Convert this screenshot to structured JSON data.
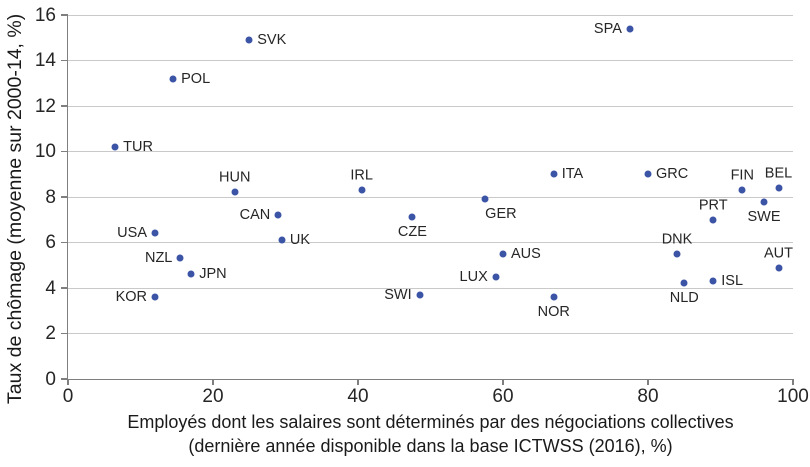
{
  "figure": {
    "background": "#ffffff",
    "dot_color": "#3b54a5",
    "grid_color": "#c9c9c9",
    "axis_color": "#7f7f7f",
    "text_color": "#262626"
  },
  "chart_data": {
    "type": "scatter",
    "title": "",
    "xlabel_line1": "Employés dont les salaires sont déterminés par des négociations collectives",
    "xlabel_line2": "(dernière année disponible dans la base ICTWSS (2016), %)",
    "ylabel": "Taux de chômage (moyenne sur 2000-14, %)",
    "xlim": [
      0,
      100
    ],
    "ylim": [
      0,
      16
    ],
    "x_ticks": [
      0,
      20,
      40,
      60,
      80,
      100
    ],
    "y_ticks": [
      0,
      2,
      4,
      6,
      8,
      10,
      12,
      14,
      16
    ],
    "grid": "horizontal",
    "legend": "none",
    "points": [
      {
        "label": "TUR",
        "x": 6.5,
        "y": 10.2,
        "label_pos": "right"
      },
      {
        "label": "KOR",
        "x": 12,
        "y": 3.6,
        "label_pos": "left"
      },
      {
        "label": "USA",
        "x": 12,
        "y": 6.4,
        "label_pos": "left"
      },
      {
        "label": "POL",
        "x": 14.5,
        "y": 13.2,
        "label_pos": "right"
      },
      {
        "label": "NZL",
        "x": 15.5,
        "y": 5.3,
        "label_pos": "left"
      },
      {
        "label": "JPN",
        "x": 17,
        "y": 4.6,
        "label_pos": "right"
      },
      {
        "label": "HUN",
        "x": 23,
        "y": 8.2,
        "label_pos": "above"
      },
      {
        "label": "SVK",
        "x": 25,
        "y": 14.9,
        "label_pos": "right"
      },
      {
        "label": "CAN",
        "x": 29,
        "y": 7.2,
        "label_pos": "left"
      },
      {
        "label": "UK",
        "x": 29.5,
        "y": 6.1,
        "label_pos": "right"
      },
      {
        "label": "IRL",
        "x": 40.5,
        "y": 8.3,
        "label_pos": "above"
      },
      {
        "label": "CZE",
        "x": 47.5,
        "y": 7.1,
        "label_pos": "below"
      },
      {
        "label": "SWI",
        "x": 48.5,
        "y": 3.7,
        "label_pos": "left"
      },
      {
        "label": "GER",
        "x": 57.5,
        "y": 7.9,
        "label_pos": "below-right"
      },
      {
        "label": "LUX",
        "x": 59,
        "y": 4.5,
        "label_pos": "left"
      },
      {
        "label": "AUS",
        "x": 60,
        "y": 5.5,
        "label_pos": "right"
      },
      {
        "label": "NOR",
        "x": 67,
        "y": 3.6,
        "label_pos": "below"
      },
      {
        "label": "ITA",
        "x": 67,
        "y": 9.0,
        "label_pos": "right"
      },
      {
        "label": "SPA",
        "x": 77.5,
        "y": 15.4,
        "label_pos": "left"
      },
      {
        "label": "GRC",
        "x": 80,
        "y": 9.0,
        "label_pos": "right"
      },
      {
        "label": "DNK",
        "x": 84,
        "y": 5.5,
        "label_pos": "above"
      },
      {
        "label": "NLD",
        "x": 85,
        "y": 4.2,
        "label_pos": "below"
      },
      {
        "label": "ISL",
        "x": 89,
        "y": 4.3,
        "label_pos": "right"
      },
      {
        "label": "PRT",
        "x": 89,
        "y": 7.0,
        "label_pos": "above"
      },
      {
        "label": "FIN",
        "x": 93,
        "y": 8.3,
        "label_pos": "above"
      },
      {
        "label": "SWE",
        "x": 96,
        "y": 7.8,
        "label_pos": "below"
      },
      {
        "label": "BEL",
        "x": 98,
        "y": 8.4,
        "label_pos": "above"
      },
      {
        "label": "AUT",
        "x": 98,
        "y": 4.9,
        "label_pos": "above"
      }
    ]
  }
}
